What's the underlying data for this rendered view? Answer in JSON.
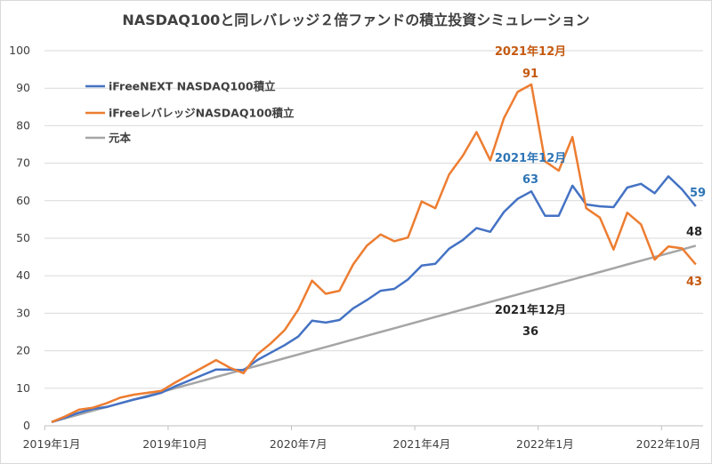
{
  "chart_data": {
    "type": "line",
    "title": "NASDAQ100と同レバレッジ２倍ファンドの積立投資シミュレーション",
    "xlabel": "",
    "ylabel": "",
    "ylim": [
      0,
      100
    ],
    "yticks": [
      0,
      10,
      20,
      30,
      40,
      50,
      60,
      70,
      80,
      90,
      100
    ],
    "grid": true,
    "legend_position": "top-left",
    "x_tick_labels": [
      {
        "index": 0,
        "label": "2019年1月"
      },
      {
        "index": 9,
        "label": "2019年10月"
      },
      {
        "index": 18,
        "label": "2020年7月"
      },
      {
        "index": 27,
        "label": "2021年4月"
      },
      {
        "index": 36,
        "label": "2022年1月"
      },
      {
        "index": 45,
        "label": "2022年10月"
      }
    ],
    "months": 48,
    "series": [
      {
        "name": "iFreeNEXT NASDAQ100積立",
        "color": "#4472c4",
        "values": [
          1,
          2.2,
          3.5,
          4.5,
          5,
          6,
          7,
          7.8,
          8.8,
          10.5,
          12,
          13.5,
          15,
          15,
          14.8,
          17.5,
          19.5,
          21.5,
          23.8,
          28,
          27.5,
          28.2,
          31.3,
          33.5,
          36,
          36.5,
          39,
          42.7,
          43.2,
          47.2,
          49.5,
          52.7,
          51.7,
          57,
          60.5,
          62.5,
          56,
          56,
          64,
          59,
          58.5,
          58.3,
          63.5,
          64.5,
          62,
          66.5,
          63,
          58.5
        ]
      },
      {
        "name": "iFreeレバレッジNASDAQ100積立",
        "color": "#ed7d31",
        "values": [
          1,
          2.5,
          4.3,
          4.8,
          6,
          7.5,
          8.3,
          8.8,
          9.3,
          11.5,
          13.5,
          15.5,
          17.5,
          15.5,
          14,
          19,
          22,
          25.5,
          31,
          38.7,
          35.2,
          36,
          43,
          48,
          51,
          49.2,
          50.2,
          59.8,
          58,
          67,
          72,
          78.3,
          70.8,
          82,
          89,
          91,
          70.5,
          68,
          77,
          58,
          55.5,
          47,
          56.8,
          53.7,
          44.3,
          47.8,
          47.3,
          43
        ]
      },
      {
        "name": "元本",
        "color": "#a5a5a5",
        "values": [
          1,
          2,
          3,
          4,
          5,
          6,
          7,
          8,
          9,
          10,
          11,
          12,
          13,
          14,
          15,
          16,
          17,
          18,
          19,
          20,
          21,
          22,
          23,
          24,
          25,
          26,
          27,
          28,
          29,
          30,
          31,
          32,
          33,
          34,
          35,
          36,
          37,
          38,
          39,
          40,
          41,
          42,
          43,
          44,
          45,
          46,
          47,
          48
        ]
      }
    ],
    "annotations": [
      {
        "series": 1,
        "index": 35,
        "label": "2021年12月",
        "value_label": "91",
        "color": "#c55a11"
      },
      {
        "series": 0,
        "index": 35,
        "label": "2021年12月",
        "value_label": "63",
        "color": "#2e75b6"
      },
      {
        "series": 2,
        "index": 35,
        "label": "2021年12月",
        "value_label": "36",
        "color": "#262626"
      },
      {
        "series": 0,
        "index": 47,
        "label": "",
        "value_label": "59",
        "color": "#2e75b6"
      },
      {
        "series": 2,
        "index": 47,
        "label": "",
        "value_label": "48",
        "color": "#262626"
      },
      {
        "series": 1,
        "index": 47,
        "label": "",
        "value_label": "43",
        "color": "#c55a11"
      }
    ]
  }
}
